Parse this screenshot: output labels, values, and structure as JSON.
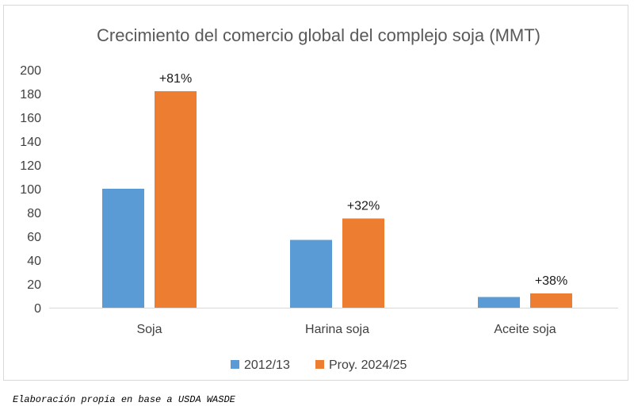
{
  "chart_data": {
    "type": "bar",
    "title": "Crecimiento del comercio global del complejo soja (MMT)",
    "categories": [
      "Soja",
      "Harina soja",
      "Aceite soja"
    ],
    "series": [
      {
        "name": "2012/13",
        "values": [
          100,
          57,
          9
        ],
        "color": "#5b9bd5"
      },
      {
        "name": "Proy. 2024/25",
        "values": [
          182,
          75,
          12
        ],
        "color": "#ed7d31"
      }
    ],
    "data_labels": [
      "+81%",
      "+32%",
      "+38%"
    ],
    "ylim": [
      0,
      200
    ],
    "yticks": [
      0,
      20,
      40,
      60,
      80,
      100,
      120,
      140,
      160,
      180,
      200
    ],
    "grid": false,
    "legend_position": "bottom"
  },
  "source_note": "Elaboración propia en base a USDA WASDE"
}
